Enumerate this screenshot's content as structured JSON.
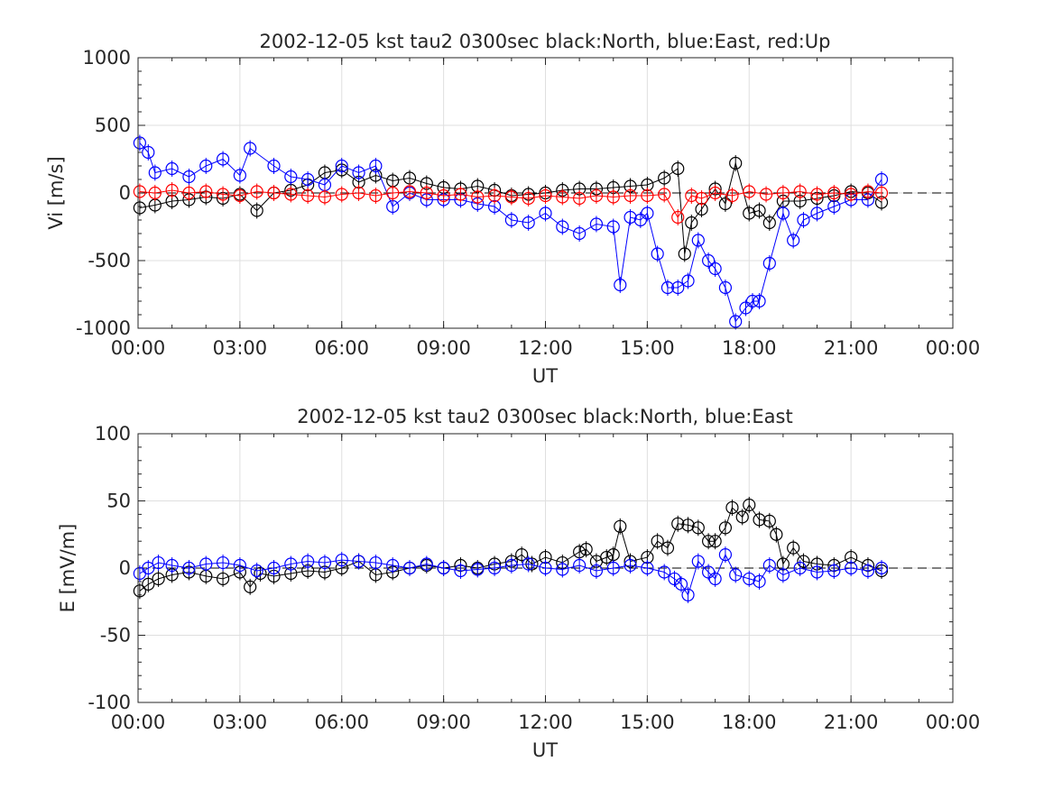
{
  "chart_data": [
    {
      "type": "scatter",
      "title": "2002-12-05 kst tau2 0300sec black:North, blue:East, red:Up",
      "xlabel": "UT",
      "ylabel": "Vi [m/s]",
      "xlim": [
        0,
        24
      ],
      "ylim": [
        -1000,
        1000
      ],
      "xticks": [
        "00:00",
        "03:00",
        "06:00",
        "09:00",
        "12:00",
        "15:00",
        "18:00",
        "21:00",
        "00:00"
      ],
      "yticks": [
        "-1000",
        "-500",
        "0",
        "500",
        "1000"
      ],
      "grid": true,
      "zero_line": "dashed",
      "series": [
        {
          "name": "North",
          "color": "#000000",
          "x": [
            0.05,
            0.5,
            1.0,
            1.5,
            2.0,
            2.5,
            3.0,
            3.5,
            4.0,
            4.5,
            5.0,
            5.5,
            6.0,
            6.5,
            7.0,
            7.5,
            8.0,
            8.5,
            9.0,
            9.5,
            10.0,
            10.5,
            11.0,
            11.5,
            12.0,
            12.5,
            13.0,
            13.5,
            14.0,
            14.5,
            15.0,
            15.5,
            15.9,
            16.1,
            16.3,
            16.6,
            17.0,
            17.3,
            17.6,
            18.0,
            18.3,
            18.6,
            19.0,
            19.5,
            20.0,
            20.5,
            21.0,
            21.5,
            21.9
          ],
          "values": [
            -110,
            -90,
            -60,
            -50,
            -30,
            -40,
            -10,
            -130,
            0,
            20,
            60,
            150,
            170,
            80,
            130,
            90,
            110,
            70,
            40,
            30,
            50,
            20,
            -20,
            -10,
            0,
            20,
            30,
            30,
            40,
            50,
            60,
            110,
            180,
            -450,
            -220,
            -120,
            30,
            -80,
            220,
            -150,
            -130,
            -220,
            -60,
            -60,
            -40,
            -20,
            10,
            0,
            -70
          ]
        },
        {
          "name": "East",
          "color": "#0000ff",
          "x": [
            0.05,
            0.3,
            0.5,
            1.0,
            1.5,
            2.0,
            2.5,
            3.0,
            3.3,
            4.0,
            4.5,
            5.0,
            5.5,
            6.0,
            6.5,
            7.0,
            7.5,
            8.0,
            8.5,
            9.0,
            9.5,
            10.0,
            10.5,
            11.0,
            11.5,
            12.0,
            12.5,
            13.0,
            13.5,
            14.0,
            14.2,
            14.5,
            14.8,
            15.0,
            15.3,
            15.6,
            15.9,
            16.2,
            16.5,
            16.8,
            17.0,
            17.3,
            17.6,
            17.9,
            18.1,
            18.3,
            18.6,
            19.0,
            19.3,
            19.6,
            20.0,
            20.5,
            21.0,
            21.5,
            21.9
          ],
          "values": [
            370,
            300,
            150,
            180,
            120,
            200,
            250,
            130,
            330,
            200,
            120,
            100,
            60,
            200,
            150,
            200,
            -100,
            0,
            -50,
            -50,
            -50,
            -80,
            -100,
            -200,
            -220,
            -150,
            -250,
            -300,
            -230,
            -250,
            -680,
            -180,
            -200,
            -150,
            -450,
            -700,
            -700,
            -650,
            -350,
            -500,
            -560,
            -700,
            -950,
            -850,
            -800,
            -800,
            -520,
            -150,
            -350,
            -200,
            -150,
            -100,
            -50,
            -50,
            100
          ]
        },
        {
          "name": "Up",
          "color": "#ff0000",
          "x": [
            0.05,
            0.5,
            1.0,
            1.5,
            2.0,
            2.5,
            3.0,
            3.5,
            4.0,
            4.5,
            5.0,
            5.5,
            6.0,
            6.5,
            7.0,
            7.5,
            8.0,
            8.5,
            9.0,
            9.5,
            10.0,
            10.5,
            11.0,
            11.5,
            12.0,
            12.5,
            13.0,
            13.5,
            14.0,
            14.5,
            15.0,
            15.5,
            15.9,
            16.3,
            16.6,
            17.0,
            17.5,
            18.0,
            18.5,
            19.0,
            19.5,
            20.0,
            20.5,
            21.0,
            21.5,
            21.9
          ],
          "values": [
            10,
            0,
            20,
            0,
            10,
            -10,
            -20,
            10,
            0,
            -10,
            -20,
            -30,
            -10,
            0,
            -20,
            0,
            10,
            0,
            -20,
            -10,
            -30,
            -20,
            -30,
            -40,
            -20,
            -30,
            -40,
            -20,
            -30,
            -20,
            -20,
            -10,
            -180,
            -20,
            -40,
            0,
            -20,
            10,
            -10,
            0,
            10,
            -10,
            0,
            -10,
            10,
            0
          ]
        }
      ]
    },
    {
      "type": "scatter",
      "title": "2002-12-05 kst tau2 0300sec black:North, blue:East",
      "xlabel": "UT",
      "ylabel": "E [mV/m]",
      "xlim": [
        0,
        24
      ],
      "ylim": [
        -100,
        100
      ],
      "xticks": [
        "00:00",
        "03:00",
        "06:00",
        "09:00",
        "12:00",
        "15:00",
        "18:00",
        "21:00",
        "00:00"
      ],
      "yticks": [
        "-100",
        "-50",
        "0",
        "50",
        "100"
      ],
      "grid": true,
      "zero_line": "dashed",
      "series": [
        {
          "name": "North",
          "color": "#000000",
          "x": [
            0.05,
            0.3,
            0.6,
            1.0,
            1.5,
            2.0,
            2.5,
            3.0,
            3.3,
            3.6,
            4.0,
            4.5,
            5.0,
            5.5,
            6.0,
            6.5,
            7.0,
            7.5,
            8.0,
            8.5,
            9.0,
            9.5,
            10.0,
            10.5,
            11.0,
            11.3,
            11.6,
            12.0,
            12.5,
            13.0,
            13.2,
            13.5,
            13.8,
            14.0,
            14.2,
            14.5,
            15.0,
            15.3,
            15.6,
            15.9,
            16.2,
            16.5,
            16.8,
            17.0,
            17.3,
            17.5,
            17.8,
            18.0,
            18.3,
            18.6,
            18.8,
            19.0,
            19.3,
            19.6,
            20.0,
            20.5,
            21.0,
            21.5,
            21.9
          ],
          "values": [
            -17,
            -12,
            -8,
            -5,
            -3,
            -6,
            -8,
            -3,
            -14,
            -4,
            -6,
            -4,
            -2,
            -3,
            0,
            5,
            -5,
            -3,
            0,
            2,
            0,
            2,
            0,
            3,
            5,
            10,
            3,
            8,
            4,
            12,
            14,
            5,
            8,
            10,
            31,
            5,
            8,
            20,
            15,
            33,
            32,
            30,
            20,
            20,
            30,
            45,
            38,
            47,
            36,
            35,
            25,
            3,
            15,
            5,
            3,
            2,
            8,
            2,
            -2
          ]
        },
        {
          "name": "East",
          "color": "#0000ff",
          "x": [
            0.05,
            0.3,
            0.6,
            1.0,
            1.5,
            2.0,
            2.5,
            3.0,
            3.5,
            4.0,
            4.5,
            5.0,
            5.5,
            6.0,
            6.5,
            7.0,
            7.5,
            8.0,
            8.5,
            9.0,
            9.5,
            10.0,
            10.5,
            11.0,
            11.5,
            12.0,
            12.5,
            13.0,
            13.5,
            14.0,
            14.5,
            15.0,
            15.5,
            15.8,
            16.0,
            16.2,
            16.5,
            16.8,
            17.0,
            17.3,
            17.6,
            18.0,
            18.3,
            18.6,
            19.0,
            19.5,
            20.0,
            20.5,
            21.0,
            21.5,
            21.9
          ],
          "values": [
            -4,
            0,
            4,
            2,
            0,
            3,
            4,
            2,
            -2,
            0,
            3,
            5,
            4,
            6,
            5,
            4,
            2,
            0,
            3,
            0,
            -2,
            -1,
            0,
            2,
            3,
            0,
            -1,
            2,
            -2,
            0,
            2,
            0,
            -3,
            -8,
            -12,
            -20,
            5,
            -3,
            -8,
            10,
            -5,
            -8,
            -10,
            2,
            -5,
            0,
            -3,
            -2,
            0,
            -2,
            0
          ]
        }
      ]
    }
  ]
}
